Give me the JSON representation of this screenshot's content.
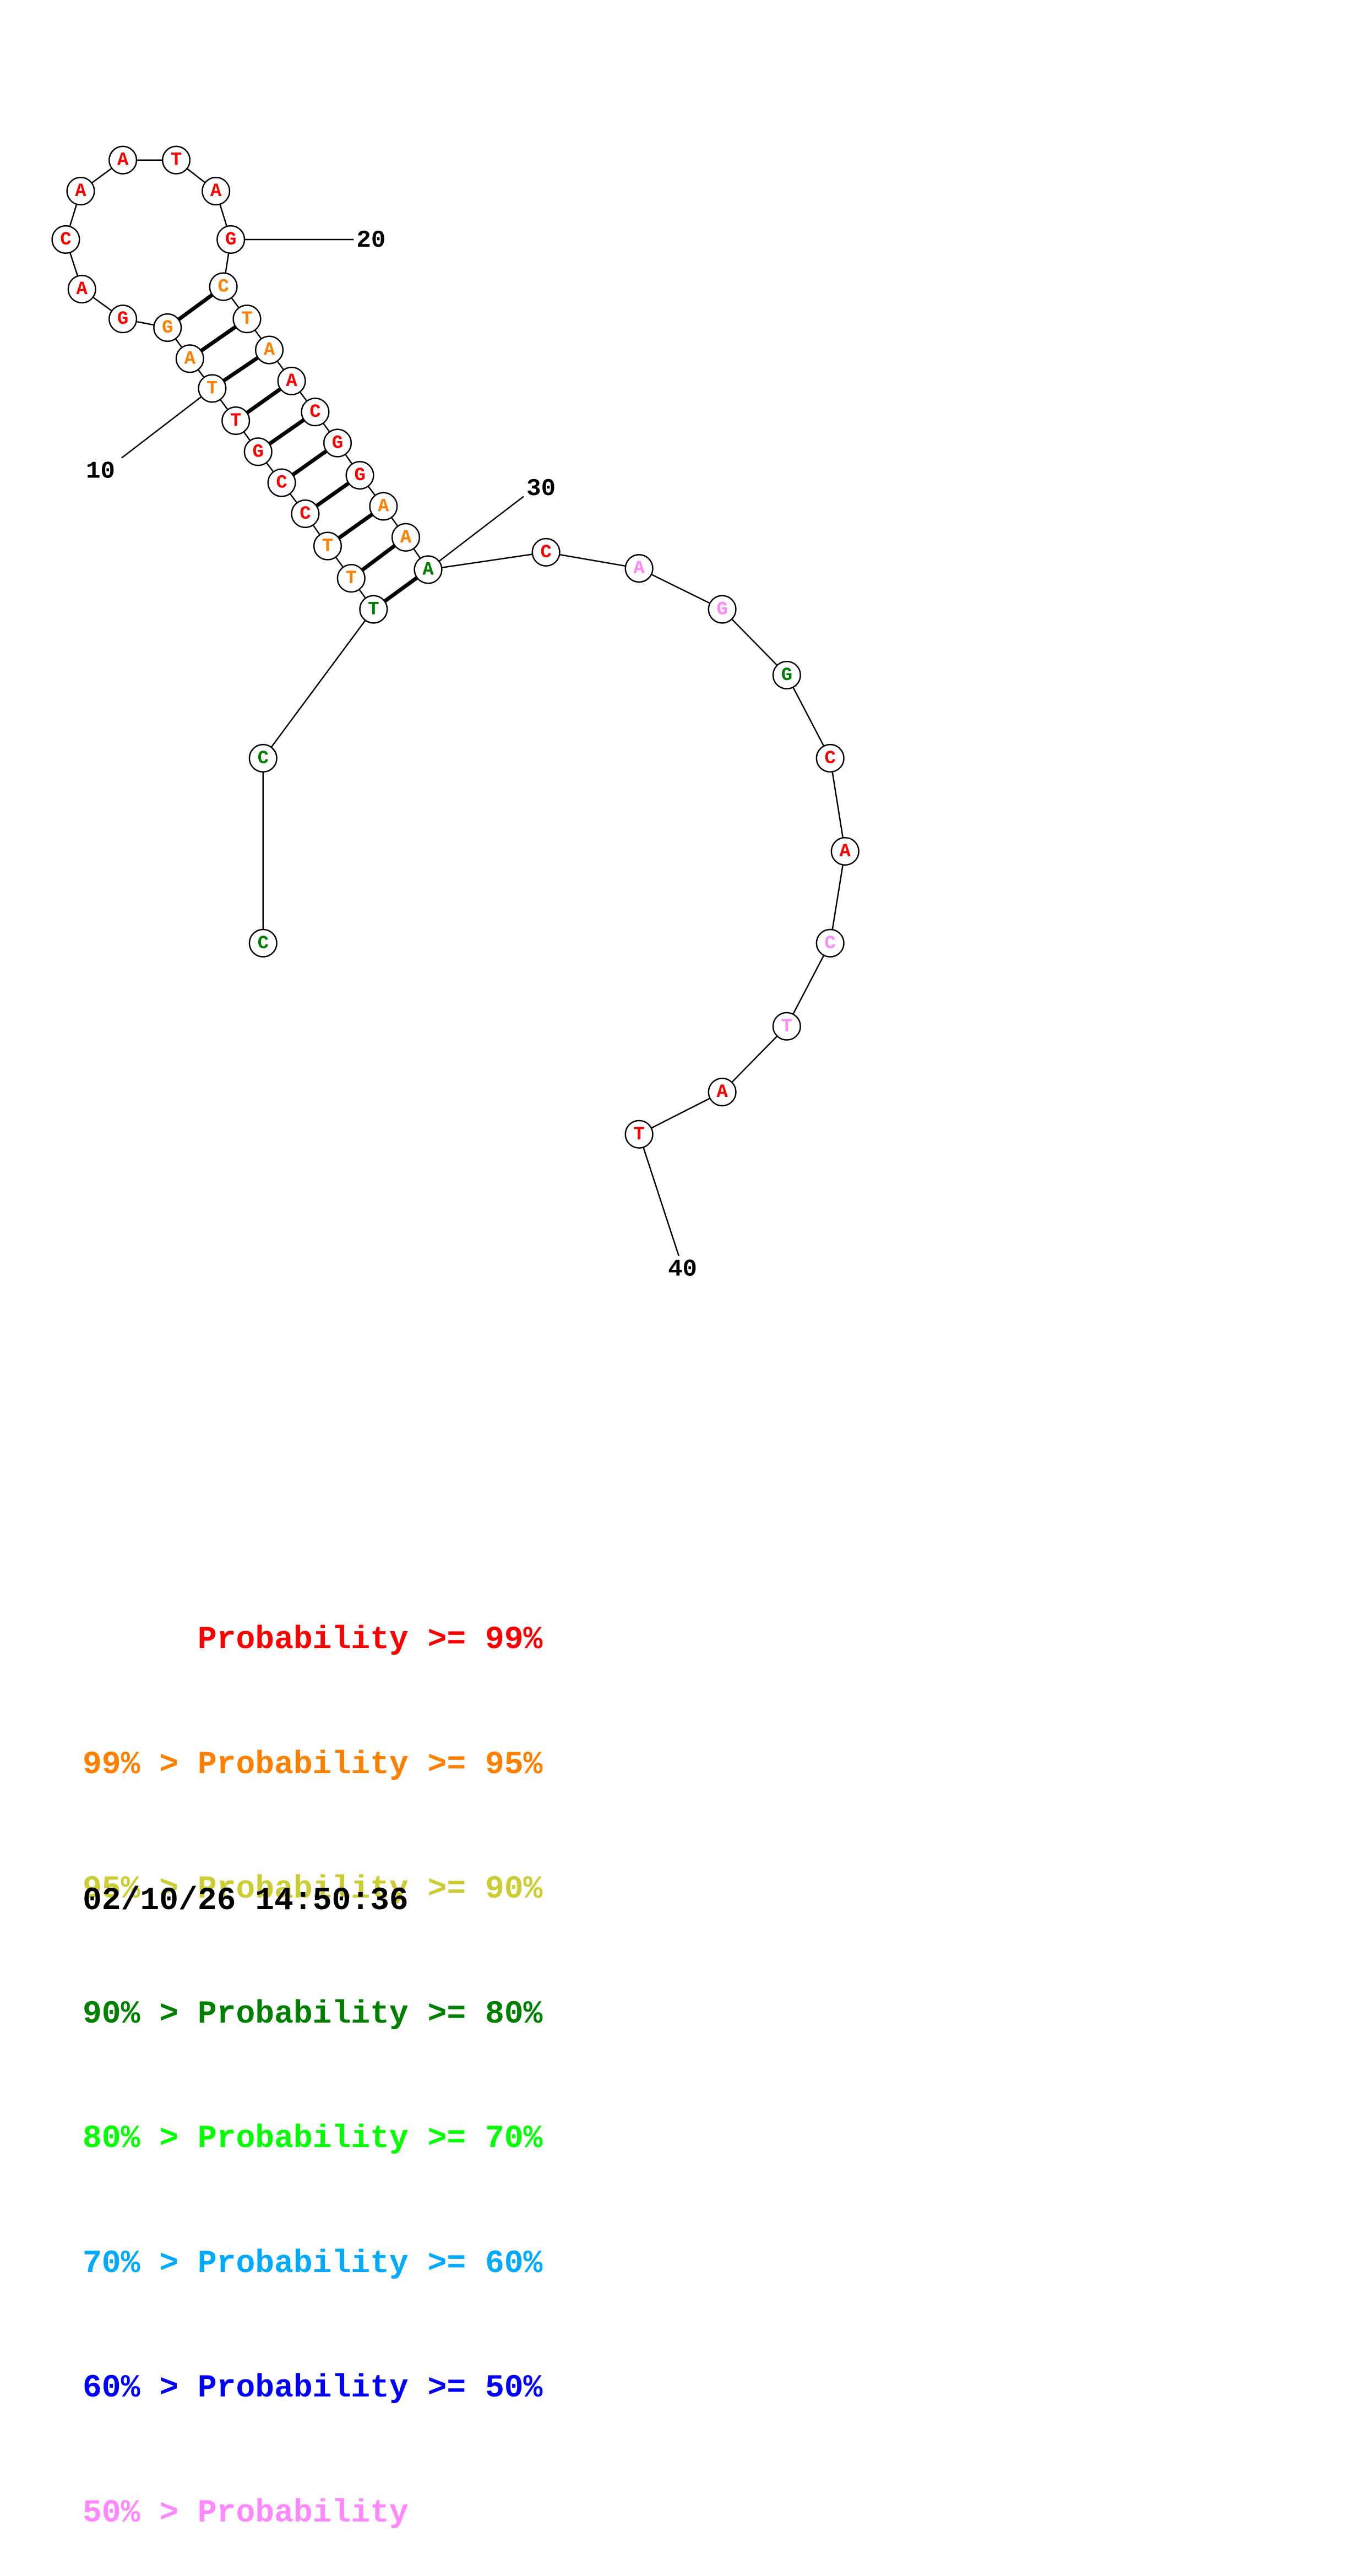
{
  "colors": {
    "p99": "#ff0000",
    "p95": "#ff8000",
    "p90": "#cccc33",
    "p80": "#008000",
    "p70": "#00ff00",
    "p60": "#00aaff",
    "p50": "#0000ff",
    "plow": "#ff88ff"
  },
  "nucleotides": [
    {
      "n": 1,
      "base": "C",
      "color": "p80"
    },
    {
      "n": 2,
      "base": "C",
      "color": "p80"
    },
    {
      "n": 3,
      "base": "T",
      "color": "p80"
    },
    {
      "n": 4,
      "base": "T",
      "color": "p95"
    },
    {
      "n": 5,
      "base": "T",
      "color": "p95"
    },
    {
      "n": 6,
      "base": "C",
      "color": "p99"
    },
    {
      "n": 7,
      "base": "C",
      "color": "p99"
    },
    {
      "n": 8,
      "base": "G",
      "color": "p99"
    },
    {
      "n": 9,
      "base": "T",
      "color": "p99"
    },
    {
      "n": 10,
      "base": "T",
      "color": "p95"
    },
    {
      "n": 11,
      "base": "A",
      "color": "p95"
    },
    {
      "n": 12,
      "base": "G",
      "color": "p95"
    },
    {
      "n": 13,
      "base": "G",
      "color": "p99"
    },
    {
      "n": 14,
      "base": "A",
      "color": "p99"
    },
    {
      "n": 15,
      "base": "C",
      "color": "p99"
    },
    {
      "n": 16,
      "base": "A",
      "color": "p99"
    },
    {
      "n": 17,
      "base": "A",
      "color": "p99"
    },
    {
      "n": 18,
      "base": "T",
      "color": "p99"
    },
    {
      "n": 19,
      "base": "A",
      "color": "p99"
    },
    {
      "n": 20,
      "base": "G",
      "color": "p99"
    },
    {
      "n": 21,
      "base": "C",
      "color": "p95"
    },
    {
      "n": 22,
      "base": "T",
      "color": "p95"
    },
    {
      "n": 23,
      "base": "A",
      "color": "p95"
    },
    {
      "n": 24,
      "base": "A",
      "color": "p99"
    },
    {
      "n": 25,
      "base": "C",
      "color": "p99"
    },
    {
      "n": 26,
      "base": "G",
      "color": "p99"
    },
    {
      "n": 27,
      "base": "G",
      "color": "p99"
    },
    {
      "n": 28,
      "base": "A",
      "color": "p95"
    },
    {
      "n": 29,
      "base": "A",
      "color": "p95"
    },
    {
      "n": 30,
      "base": "A",
      "color": "p80"
    },
    {
      "n": 31,
      "base": "C",
      "color": "p99"
    },
    {
      "n": 32,
      "base": "A",
      "color": "plow"
    },
    {
      "n": 33,
      "base": "G",
      "color": "plow"
    },
    {
      "n": 34,
      "base": "G",
      "color": "p80"
    },
    {
      "n": 35,
      "base": "C",
      "color": "p99"
    },
    {
      "n": 36,
      "base": "A",
      "color": "p99"
    },
    {
      "n": 37,
      "base": "C",
      "color": "plow"
    },
    {
      "n": 38,
      "base": "T",
      "color": "plow"
    },
    {
      "n": 39,
      "base": "A",
      "color": "p99"
    },
    {
      "n": 40,
      "base": "T",
      "color": "p99"
    }
  ],
  "pairs": [
    [
      3,
      30
    ],
    [
      4,
      29
    ],
    [
      5,
      28
    ],
    [
      6,
      27
    ],
    [
      7,
      26
    ],
    [
      8,
      25
    ],
    [
      9,
      24
    ],
    [
      10,
      23
    ],
    [
      11,
      22
    ],
    [
      12,
      21
    ]
  ],
  "position_labels": [
    {
      "n": 10,
      "text": "10"
    },
    {
      "n": 20,
      "text": "20"
    },
    {
      "n": 30,
      "text": "30"
    },
    {
      "n": 40,
      "text": "40"
    }
  ],
  "legend": [
    {
      "left": "",
      "mid": "Probability",
      "right": ">= 99%",
      "color": "p99"
    },
    {
      "left": "99% >",
      "mid": "Probability",
      "right": ">= 95%",
      "color": "p95"
    },
    {
      "left": "95% >",
      "mid": "Probability",
      "right": ">= 90%",
      "color": "p90"
    },
    {
      "left": "90% >",
      "mid": "Probability",
      "right": ">= 80%",
      "color": "p80"
    },
    {
      "left": "80% >",
      "mid": "Probability",
      "right": ">= 70%",
      "color": "p70"
    },
    {
      "left": "70% >",
      "mid": "Probability",
      "right": ">= 60%",
      "color": "p60"
    },
    {
      "left": "60% >",
      "mid": "Probability",
      "right": ">= 50%",
      "color": "p50"
    },
    {
      "left": "50% >",
      "mid": "Probability",
      "right": "",
      "color": "plow"
    }
  ],
  "timestamp": "02/10/26 14:50:36"
}
